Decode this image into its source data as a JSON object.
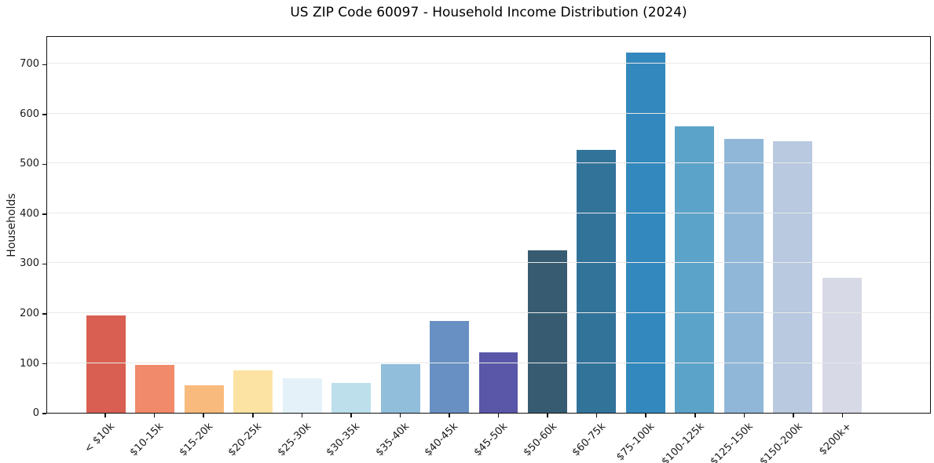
{
  "chart_data": {
    "type": "bar",
    "title": "US ZIP Code 60097 - Household Income Distribution (2024)",
    "xlabel": "",
    "ylabel": "Households",
    "categories": [
      "< $10k",
      "$10-15k",
      "$15-20k",
      "$20-25k",
      "$25-30k",
      "$30-35k",
      "$35-40k",
      "$40-45k",
      "$45-50k",
      "$50-60k",
      "$60-75k",
      "$75-100k",
      "$100-125k",
      "$125-150k",
      "$150-200k",
      "$200k+"
    ],
    "values": [
      196,
      96,
      55,
      85,
      69,
      60,
      98,
      184,
      122,
      326,
      527,
      722,
      575,
      550,
      545,
      271
    ],
    "bar_colors": [
      "#d95f52",
      "#f08a6a",
      "#f9bb7d",
      "#fde3a3",
      "#e4f1f8",
      "#bcdfeb",
      "#91bedb",
      "#6890c3",
      "#5a57a8",
      "#375c72",
      "#32739a",
      "#3389bd",
      "#5ba3c8",
      "#90b7d8",
      "#b8c9e0",
      "#d7d9e7"
    ],
    "ytick_labels": [
      "0",
      "100",
      "200",
      "300",
      "400",
      "500",
      "600",
      "700"
    ],
    "ytick_values": [
      0,
      100,
      200,
      300,
      400,
      500,
      600,
      700
    ],
    "ylim": [
      0,
      757
    ],
    "x_tick_rotation_deg": 45,
    "grid": "horizontal gridlines at each y tick, drawn over bars",
    "legend": "none"
  },
  "figure_style": {
    "background": "#ffffff",
    "grid_color": "#e8e8e8",
    "spine_color": "#111111",
    "text_color": "#1a1a1a"
  }
}
